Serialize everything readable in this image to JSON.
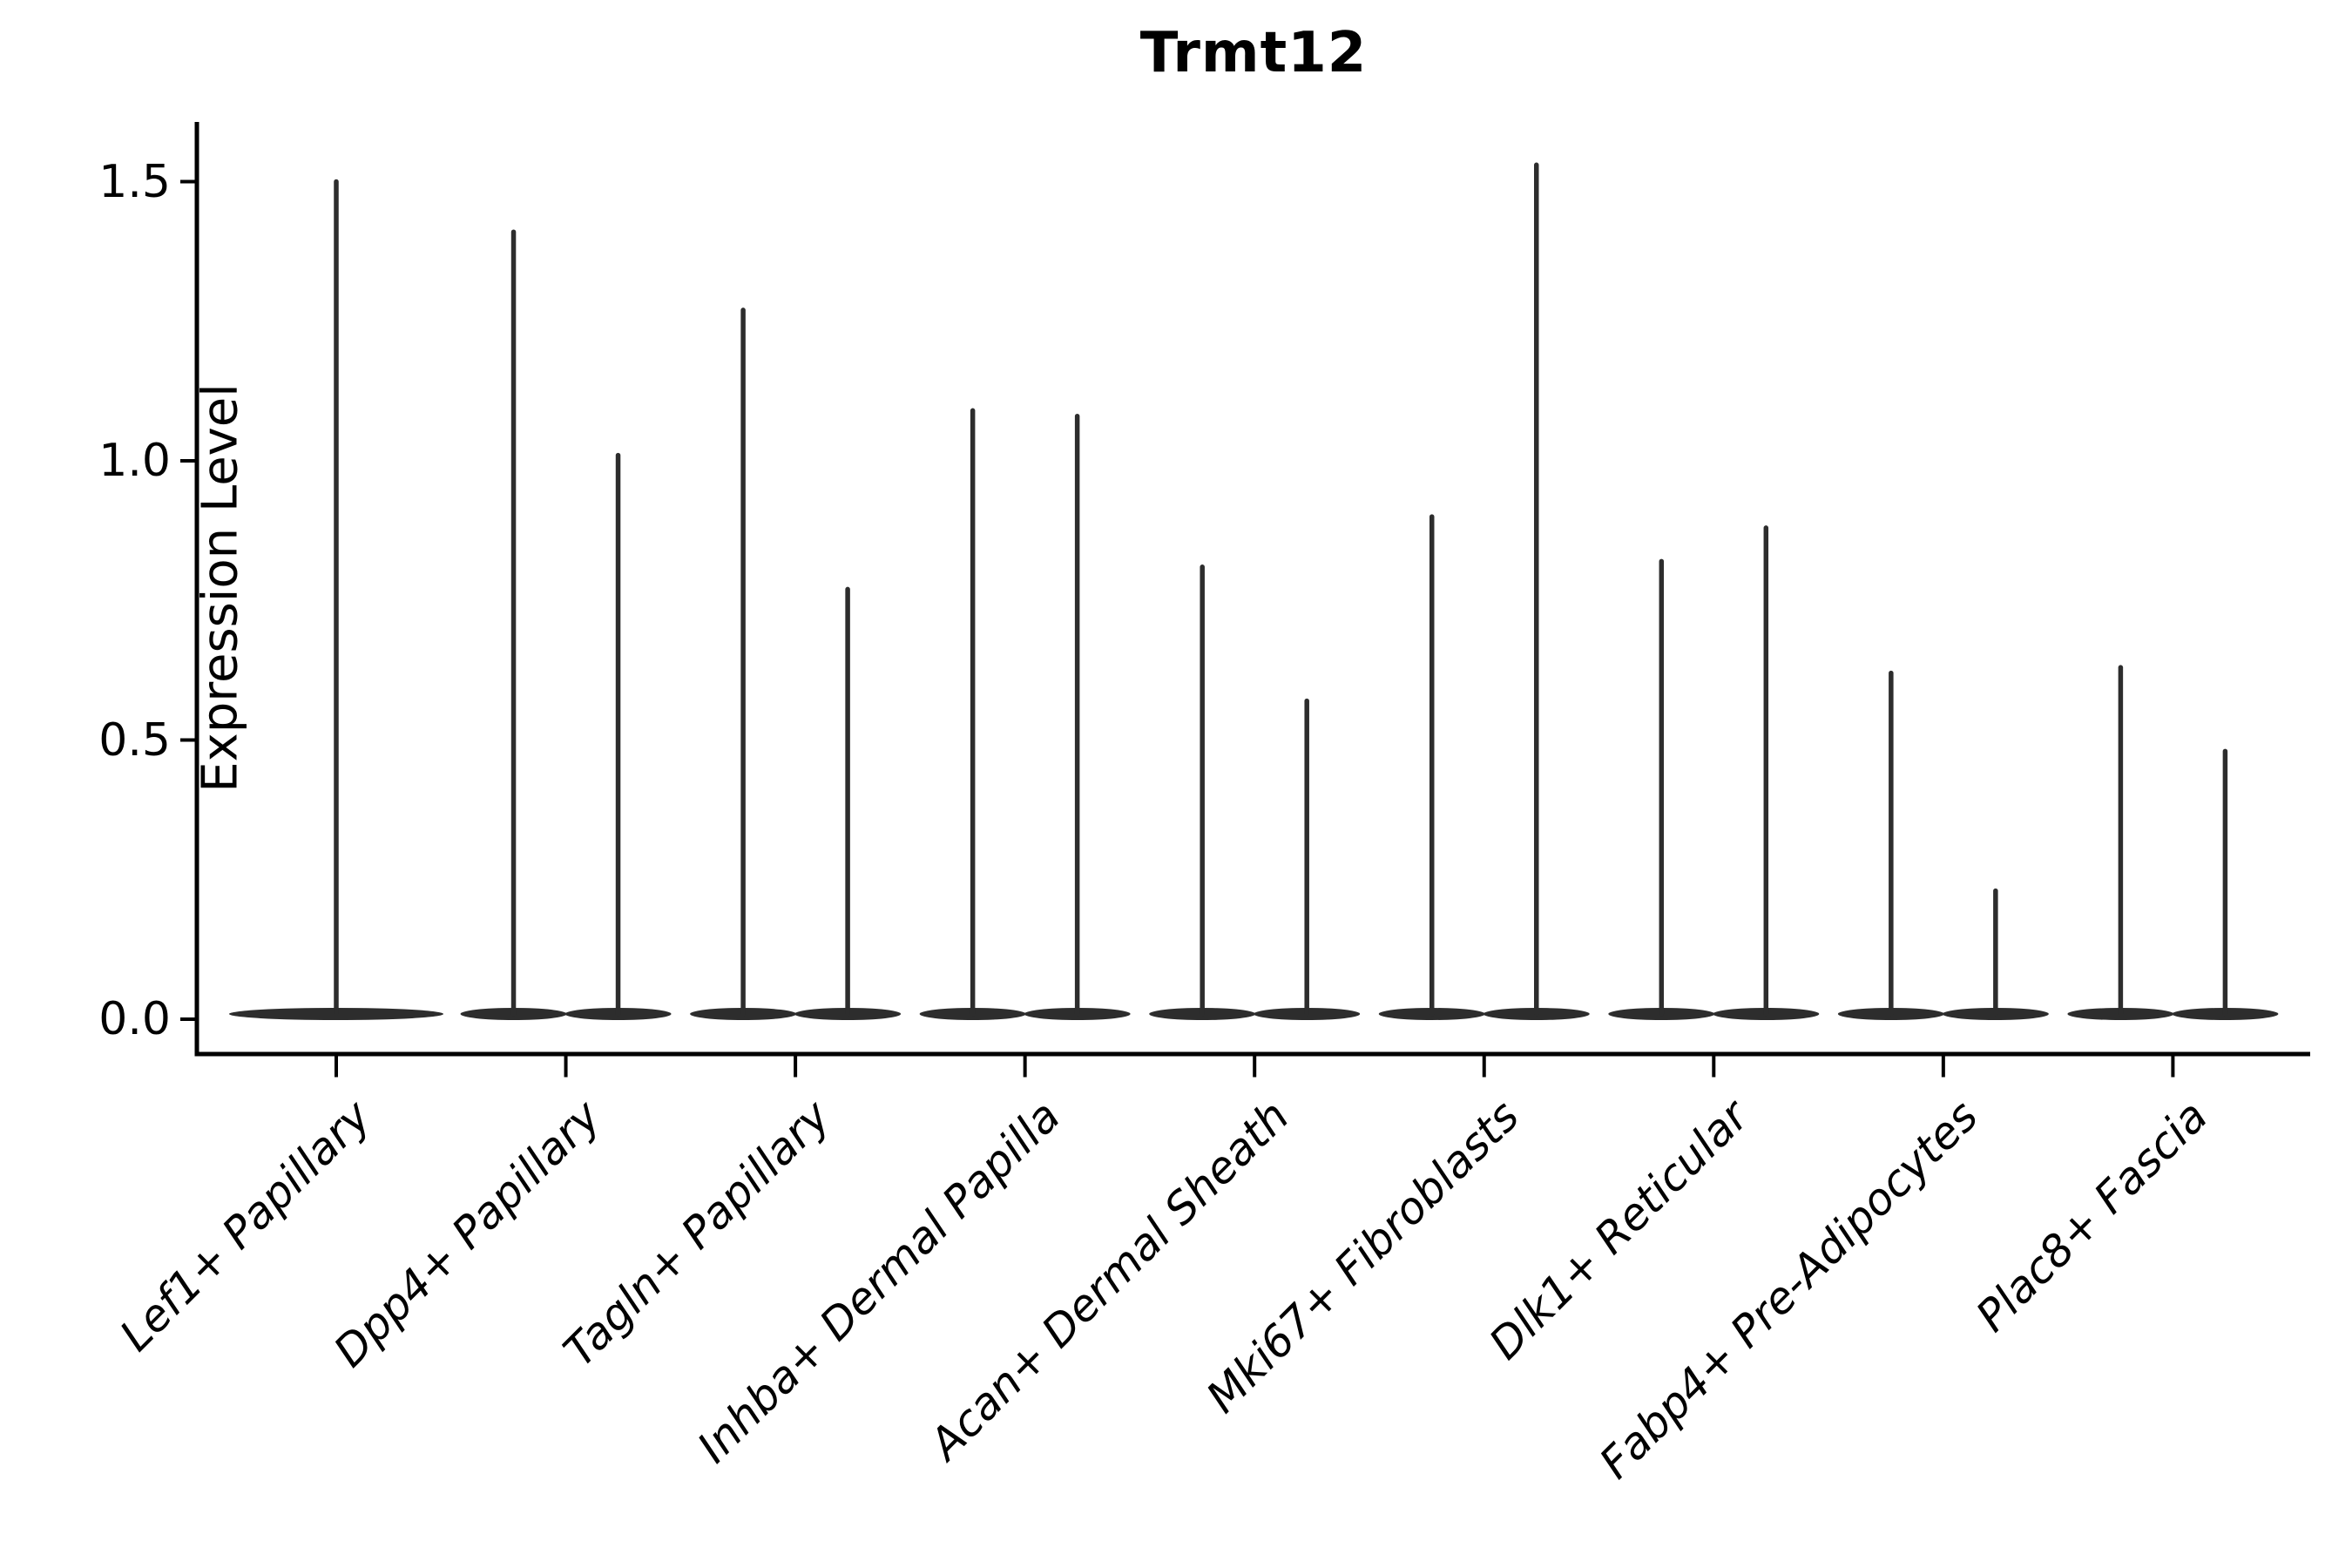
{
  "chart_data": {
    "type": "violin",
    "title": "Trmt12",
    "ylabel": "Expression Level",
    "xlabel": "",
    "ylim": [
      0,
      1.61
    ],
    "yticks": {
      "values": [
        0,
        0.5,
        1.0,
        1.5
      ],
      "labels": [
        "0.0",
        "0.5",
        "1.0",
        "1.5"
      ]
    },
    "grid": false,
    "legend": "none",
    "violin_color": "#2d2d2d",
    "axis_color": "#000000",
    "note": "Thin collapsed violins: wide flat density at 0 with a narrow spike up to the max expression value; most categories contain two violins side by side, the first category contains one centered violin.",
    "categories": [
      "Lef1+ Papillary",
      "Dpp4+ Papillary",
      "Tagln+ Papillary",
      "Inhba+ Dermal Papilla",
      "Acan+ Dermal Sheath",
      "Mki67+ Fibroblasts",
      "Dlk1+ Reticular",
      "Fabp4+ Pre-Adipocytes",
      "Plac8+ Fascia"
    ],
    "violins_max_expression": [
      [
        1.5
      ],
      [
        1.41,
        1.01
      ],
      [
        1.27,
        0.77
      ],
      [
        1.09,
        1.08
      ],
      [
        0.81,
        0.57
      ],
      [
        0.9,
        1.53
      ],
      [
        0.82,
        0.88
      ],
      [
        0.62,
        0.23
      ],
      [
        0.63,
        0.48
      ]
    ]
  }
}
